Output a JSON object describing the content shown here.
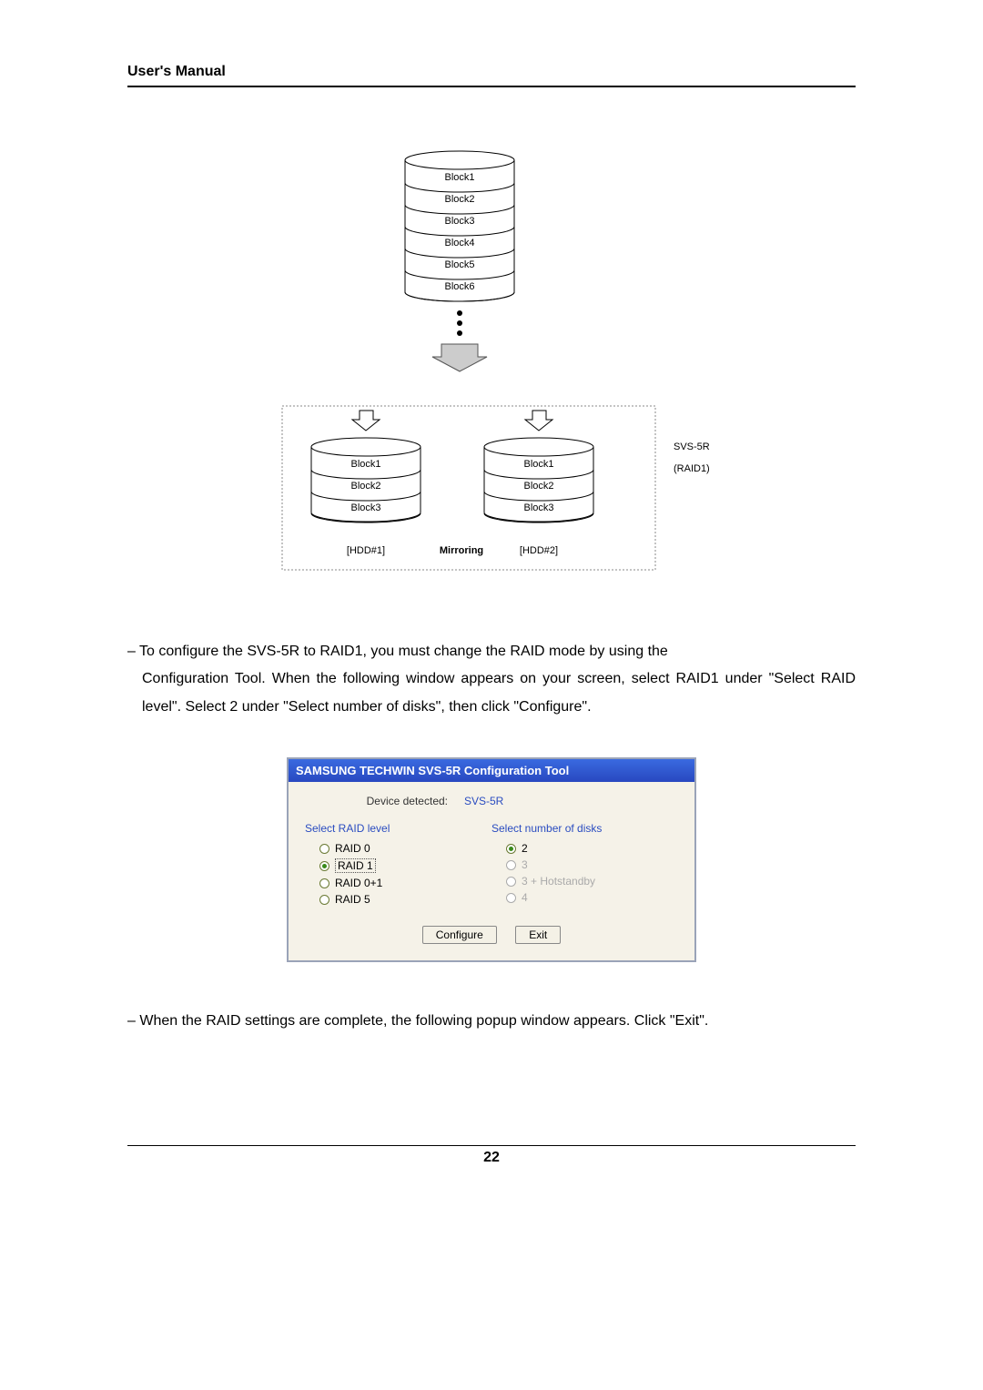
{
  "header": {
    "title": "User's Manual"
  },
  "diagram": {
    "top_blocks": [
      "Block1",
      "Block2",
      "Block3",
      "Block4",
      "Block5",
      "Block6"
    ],
    "hdd1_blocks": [
      "Block1",
      "Block2",
      "Block3"
    ],
    "hdd2_blocks": [
      "Block1",
      "Block2",
      "Block3"
    ],
    "hdd1_label": "[HDD#1]",
    "hdd2_label": "[HDD#2]",
    "mirroring_label": "Mirroring",
    "side_label_line1": "SVS-5R",
    "side_label_line2": "(RAID1)"
  },
  "paragraph1_prefix": "– To configure the SVS-5R to RAID1, you must change the RAID mode by using the",
  "paragraph1_rest": "Configuration Tool. When the following window appears on your screen, select RAID1 under \"Select RAID level\". Select 2 under \"Select number of disks\", then click \"Configure\".",
  "dialog": {
    "title": "SAMSUNG TECHWIN SVS-5R Configuration Tool",
    "detected_label": "Device detected:",
    "detected_value": "SVS-5R",
    "raid_level_title": "Select RAID level",
    "raid_options": [
      "RAID 0",
      "RAID 1",
      "RAID 0+1",
      "RAID 5"
    ],
    "raid_selected_index": 1,
    "disks_title": "Select number of disks",
    "disk_options": [
      "2",
      "3",
      "3 + Hotstandby",
      "4"
    ],
    "disk_selected_index": 0,
    "disk_enabled": [
      true,
      false,
      false,
      false
    ],
    "configure_btn": "Configure",
    "exit_btn": "Exit"
  },
  "paragraph2": "– When the RAID settings are complete, the following popup window appears. Click \"Exit\".",
  "page_number": "22"
}
